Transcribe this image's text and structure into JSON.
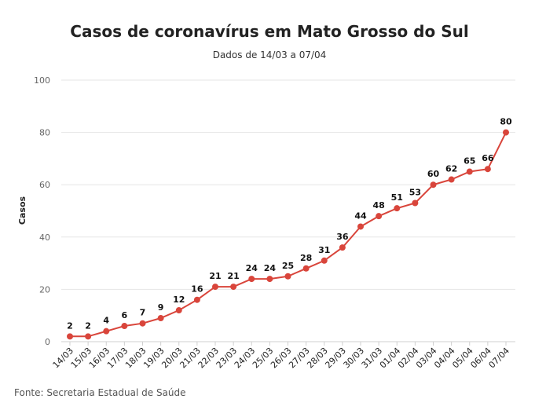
{
  "chart_data": {
    "type": "line",
    "title": "Casos de coronavírus em Mato Grosso do Sul",
    "subtitle": "Dados de 14/03 a 07/04",
    "xlabel": "",
    "ylabel": "Casos",
    "ylim": [
      0,
      100
    ],
    "yticks": [
      0,
      20,
      40,
      60,
      80,
      100
    ],
    "grid": true,
    "categories": [
      "14/03",
      "15/03",
      "16/03",
      "17/03",
      "18/03",
      "19/03",
      "20/03",
      "21/03",
      "22/03",
      "23/03",
      "24/03",
      "25/03",
      "26/03",
      "27/03",
      "28/03",
      "29/03",
      "30/03",
      "31/03",
      "01/04",
      "02/04",
      "03/04",
      "04/04",
      "05/04",
      "06/04",
      "07/04"
    ],
    "series": [
      {
        "values": [
          2,
          2,
          4,
          6,
          7,
          9,
          12,
          16,
          21,
          21,
          24,
          24,
          25,
          28,
          31,
          36,
          44,
          48,
          51,
          53,
          60,
          62,
          65,
          66,
          80
        ],
        "color": "#d9453b"
      }
    ],
    "source": "Fonte: Secretaria Estadual de Saúde"
  }
}
